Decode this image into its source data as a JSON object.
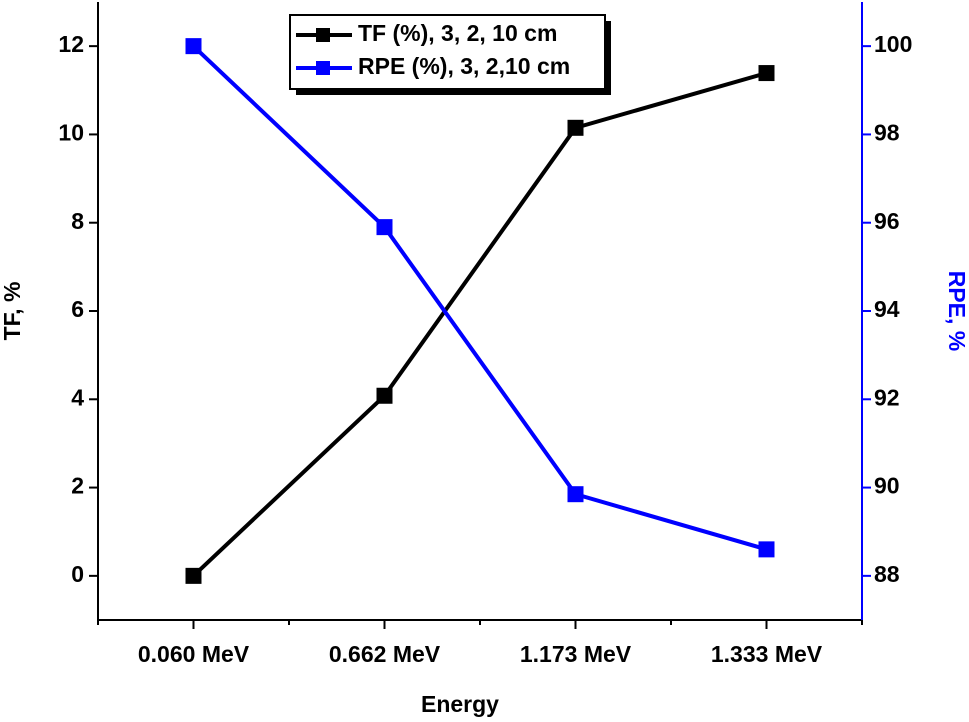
{
  "chart_data": {
    "type": "line",
    "x_label": "Energy",
    "y_label": "TF, %",
    "y2_label": "RPE, %",
    "categories": [
      "0.060 MeV",
      "0.662 MeV",
      "1.173 MeV",
      "1.333 MeV"
    ],
    "series": [
      {
        "name": "TF (%), 3, 2, 10 cm",
        "color": "#000000",
        "values": [
          0,
          4.08,
          10.15,
          11.39
        ]
      },
      {
        "name": "RPE (%), 3, 2,10 cm",
        "color": "#0000ff",
        "axis": "y2",
        "values": [
          100,
          95.9,
          89.85,
          88.6
        ]
      }
    ],
    "ylim": [
      -1,
      13
    ],
    "yticks": [
      0,
      2,
      4,
      6,
      8,
      10,
      12
    ],
    "y2lim": [
      87,
      101
    ],
    "y2ticks": [
      88,
      90,
      92,
      94,
      96,
      98,
      100
    ],
    "y2_color": "#0000ff"
  }
}
